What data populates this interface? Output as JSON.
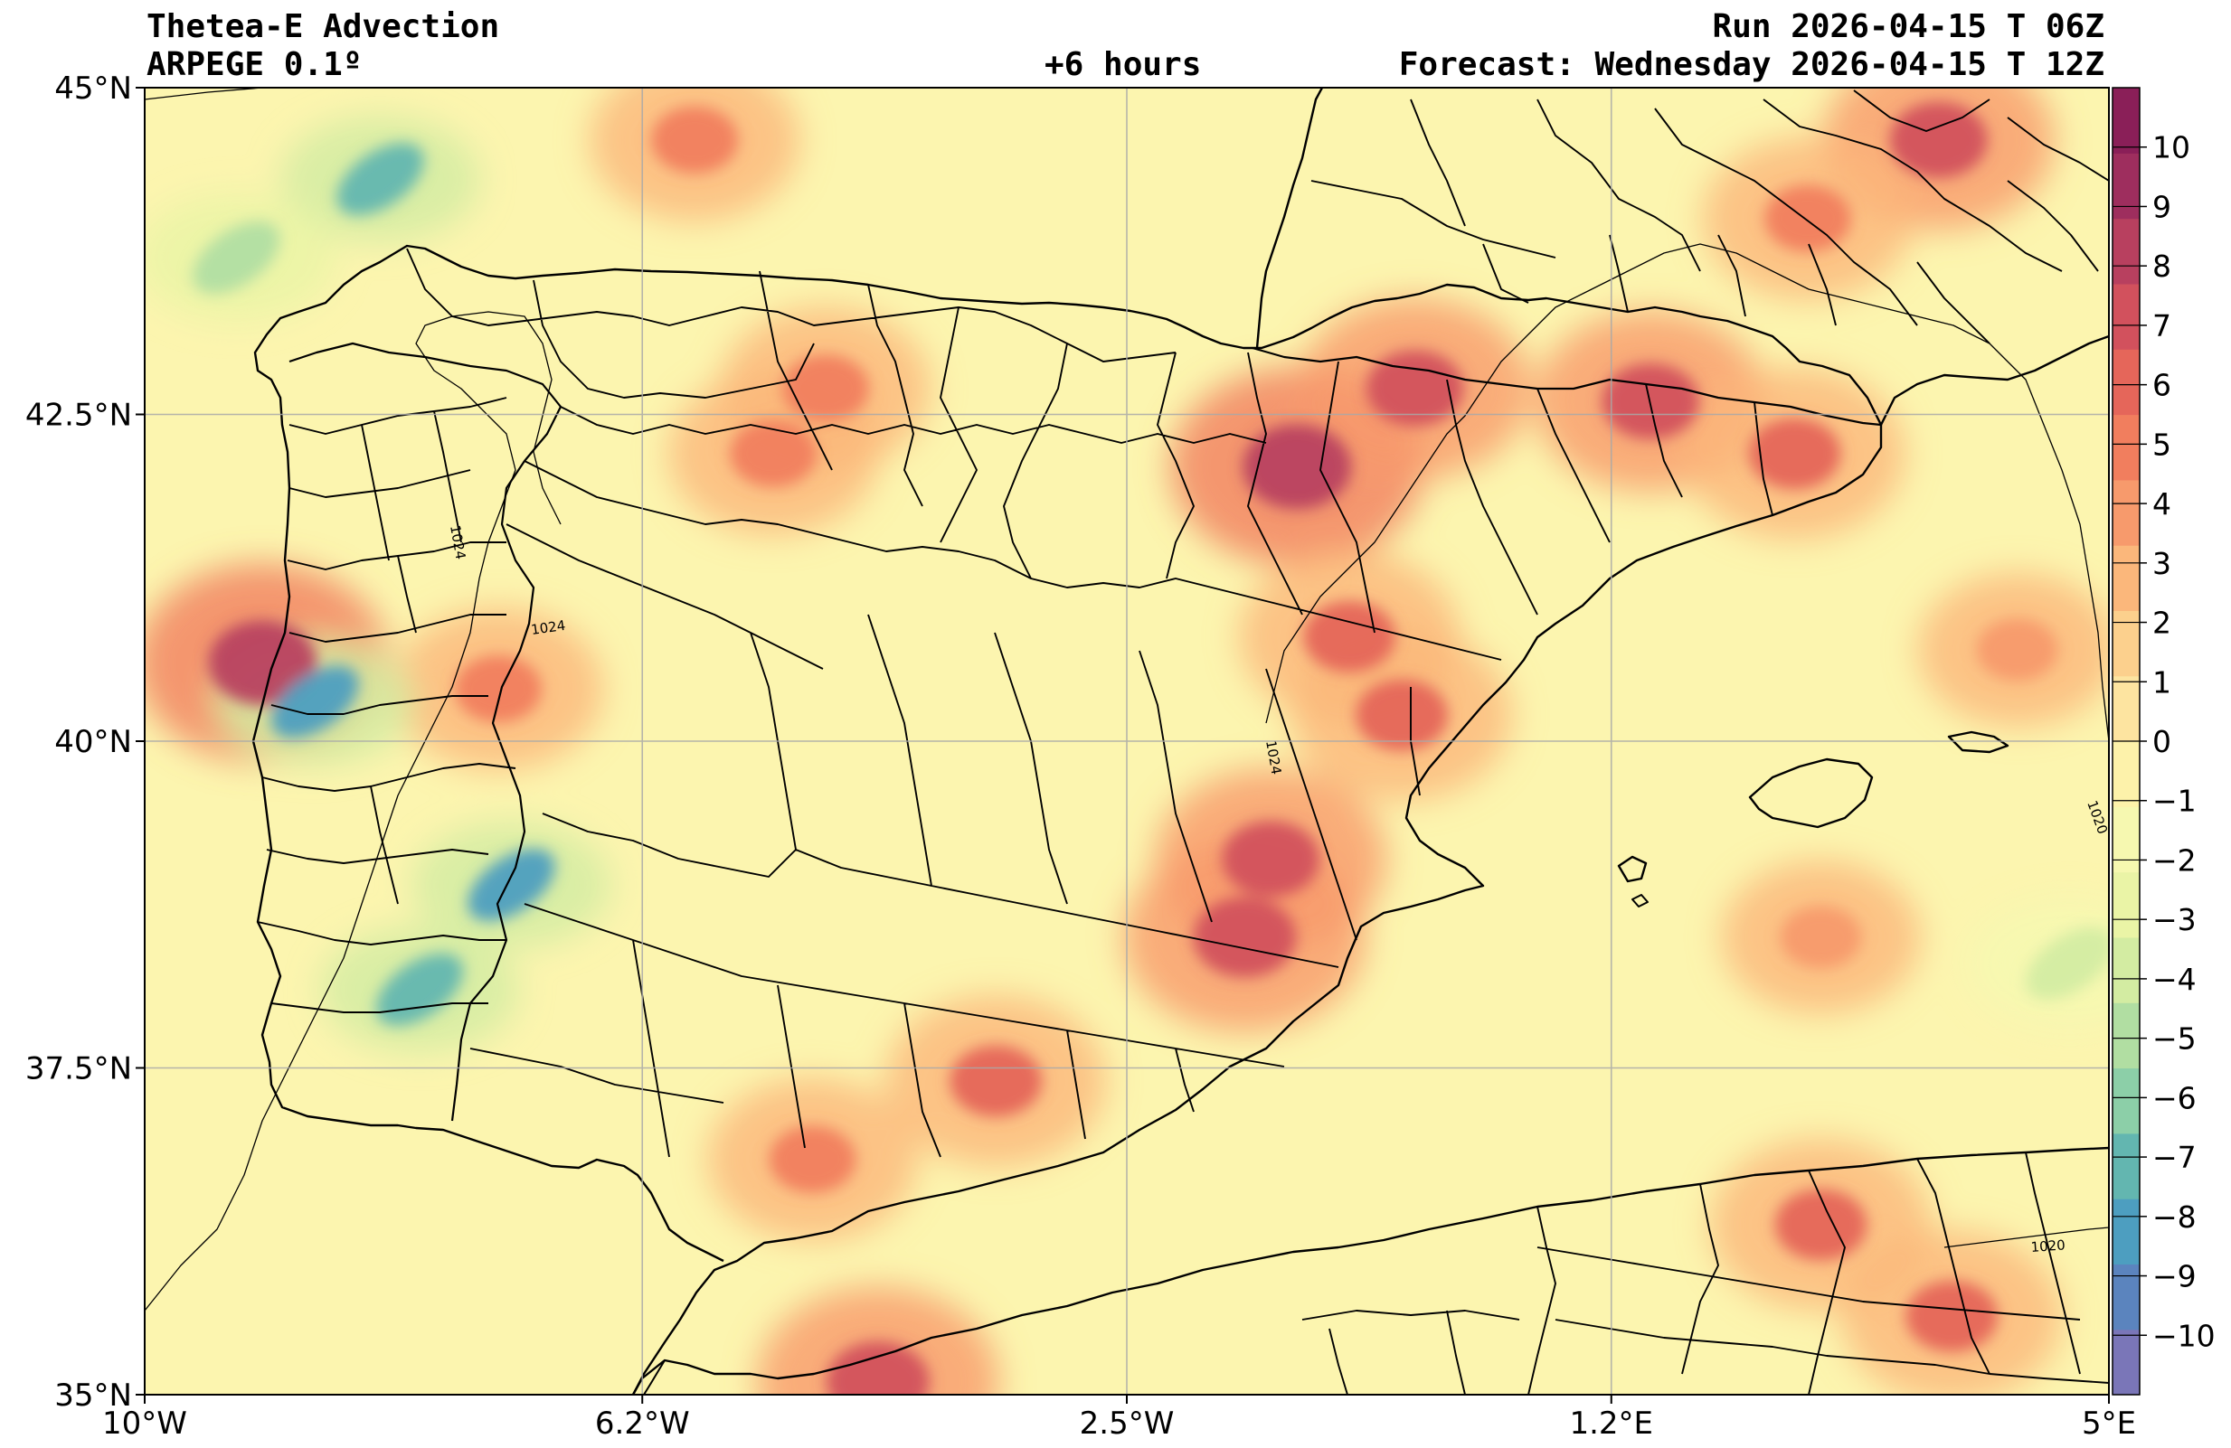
{
  "header": {
    "title": "Thetea-E Advection",
    "model": "ARPEGE 0.1º",
    "lead": "+6 hours",
    "run": "Run 2026-04-15 T 06Z",
    "forecast": "Forecast: Wednesday 2026-04-15 T 12Z"
  },
  "map": {
    "lon_range": [
      -10,
      5
    ],
    "lat_range": [
      35,
      45
    ],
    "lon_ticks": [
      {
        "value": -10,
        "label": "10°W"
      },
      {
        "value": -6.2,
        "label": "6.2°W"
      },
      {
        "value": -2.5,
        "label": "2.5°W"
      },
      {
        "value": 1.2,
        "label": "1.2°E"
      },
      {
        "value": 5,
        "label": "5°E"
      }
    ],
    "lat_ticks": [
      {
        "value": 45,
        "label": "45°N"
      },
      {
        "value": 42.5,
        "label": "42.5°N"
      },
      {
        "value": 40,
        "label": "40°N"
      },
      {
        "value": 37.5,
        "label": "37.5°N"
      },
      {
        "value": 35,
        "label": "35°N"
      }
    ],
    "grid": true,
    "isobars": [
      {
        "value": 1024,
        "label": "1024"
      },
      {
        "value": 1020,
        "label": "1020"
      }
    ],
    "land_color": "#fbf2ac",
    "sea_color": "#fdf9b5"
  },
  "colorbar": {
    "min": -11,
    "max": 11,
    "ticks": [
      10,
      9,
      8,
      7,
      6,
      5,
      4,
      3,
      2,
      1,
      0,
      -1,
      -2,
      -3,
      -4,
      -5,
      -6,
      -7,
      -8,
      -9,
      -10
    ],
    "tick_labels": [
      "10",
      "9",
      "8",
      "7",
      "6",
      "5",
      "4",
      "3",
      "2",
      "1",
      "0",
      "−1",
      "−2",
      "−3",
      "−4",
      "−5",
      "−6",
      "−7",
      "−8",
      "−9",
      "−10"
    ],
    "colors": [
      "#7a76b8",
      "#5b84be",
      "#4d9ec0",
      "#63b6b0",
      "#8ccfa8",
      "#b1dea2",
      "#d3eca2",
      "#eaf4a6",
      "#f6f8b0",
      "#fdf2aa",
      "#fde4a0",
      "#fcd08d",
      "#fbb77b",
      "#f79a6c",
      "#f17e5e",
      "#e5665a",
      "#d2515d",
      "#b8405f",
      "#9e2e5e",
      "#8a1f58"
    ]
  },
  "fields": {
    "hotspots": [
      {
        "lon": -1.2,
        "lat": 42.1,
        "value": 10
      },
      {
        "lon": -0.3,
        "lat": 42.7,
        "value": 8
      },
      {
        "lon": 1.5,
        "lat": 42.6,
        "value": 8
      },
      {
        "lon": 2.6,
        "lat": 42.2,
        "value": 7
      },
      {
        "lon": -0.8,
        "lat": 40.8,
        "value": 7
      },
      {
        "lon": -0.4,
        "lat": 40.2,
        "value": 7
      },
      {
        "lon": -1.4,
        "lat": 39.1,
        "value": 8
      },
      {
        "lon": -1.6,
        "lat": 38.5,
        "value": 9
      },
      {
        "lon": -9.1,
        "lat": 40.6,
        "value": 10
      },
      {
        "lon": -7.3,
        "lat": 40.4,
        "value": 6
      },
      {
        "lon": -5.2,
        "lat": 42.2,
        "value": 6
      },
      {
        "lon": -4.8,
        "lat": 42.7,
        "value": 6
      },
      {
        "lon": -3.5,
        "lat": 37.4,
        "value": 7
      },
      {
        "lon": -4.9,
        "lat": 36.8,
        "value": 6
      },
      {
        "lon": -4.4,
        "lat": 35.1,
        "value": 9
      },
      {
        "lon": 2.8,
        "lat": 36.3,
        "value": 7
      },
      {
        "lon": 3.8,
        "lat": 35.6,
        "value": 7
      },
      {
        "lon": 3.7,
        "lat": 44.6,
        "value": 8
      },
      {
        "lon": 2.7,
        "lat": 44.0,
        "value": 6
      },
      {
        "lon": -5.8,
        "lat": 44.6,
        "value": 6
      },
      {
        "lon": 2.8,
        "lat": 38.5,
        "value": 5
      },
      {
        "lon": 4.3,
        "lat": 40.7,
        "value": 5
      }
    ],
    "coldspots": [
      {
        "lon": -8.7,
        "lat": 40.3,
        "value": -9
      },
      {
        "lon": -7.2,
        "lat": 38.9,
        "value": -9
      },
      {
        "lon": -7.9,
        "lat": 38.1,
        "value": -8
      },
      {
        "lon": -8.2,
        "lat": 44.3,
        "value": -8
      },
      {
        "lon": -9.3,
        "lat": 43.7,
        "value": -6
      },
      {
        "lon": 4.7,
        "lat": 38.3,
        "value": -4
      }
    ]
  }
}
